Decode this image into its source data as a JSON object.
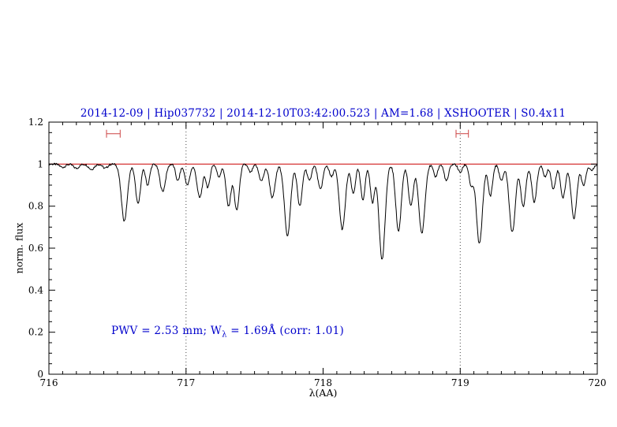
{
  "header": {
    "title": "2014-12-09 | Hip037732 | 2014-12-10T03:42:00.523 | AM=1.68 | XSHOOTER | S0.4x11"
  },
  "annotation": {
    "prefix": "PWV = 2.53 mm; W",
    "sub": "λ",
    "suffix": " = 1.69Å (corr: 1.01)"
  },
  "colors": {
    "title": "#0000cc",
    "annotation": "#0000cc",
    "spectrum": "#000000",
    "continuum": "#cc0000",
    "marker": "#cc4444",
    "dotted": "#444444",
    "axis": "#000000"
  },
  "chart_data": {
    "type": "line",
    "title": "2014-12-09 | Hip037732 | 2014-12-10T03:42:00.523 | AM=1.68 | XSHOOTER | S0.4x11",
    "xlabel": "λ(AA)",
    "ylabel": "norm. flux",
    "xlim": [
      716,
      720
    ],
    "ylim": [
      0,
      1.2
    ],
    "xticks": [
      {
        "v": 716,
        "label": "716"
      },
      {
        "v": 717,
        "label": "717"
      },
      {
        "v": 718,
        "label": "718"
      },
      {
        "v": 719,
        "label": "719"
      },
      {
        "v": 720,
        "label": "720"
      }
    ],
    "yticks": [
      {
        "v": 0,
        "label": "0"
      },
      {
        "v": 0.2,
        "label": "0.2"
      },
      {
        "v": 0.4,
        "label": "0.4"
      },
      {
        "v": 0.6,
        "label": "0.6"
      },
      {
        "v": 0.8,
        "label": "0.8"
      },
      {
        "v": 1,
        "label": "1"
      },
      {
        "v": 1.2,
        "label": "1.2"
      }
    ],
    "x_minor_step": 0.1,
    "y_minor_step": 0.05,
    "grid": false,
    "legend": "none",
    "dotted_vlines": [
      717,
      719
    ],
    "continuum": 1.0,
    "range_markers": [
      {
        "x1": 716.42,
        "x2": 716.52,
        "y": 1.145
      },
      {
        "x1": 718.97,
        "x2": 719.06,
        "y": 1.145
      }
    ],
    "absorption_lines_format": "[center_AA, depth_norm_flux, sigma_AA]",
    "absorption_lines": [
      [
        716.1,
        0.015,
        0.02
      ],
      [
        716.2,
        0.02,
        0.02
      ],
      [
        716.31,
        0.025,
        0.02
      ],
      [
        716.41,
        0.02,
        0.018
      ],
      [
        716.55,
        0.27,
        0.022
      ],
      [
        716.65,
        0.19,
        0.018
      ],
      [
        716.72,
        0.1,
        0.015
      ],
      [
        716.83,
        0.13,
        0.02
      ],
      [
        716.94,
        0.08,
        0.015
      ],
      [
        717.01,
        0.1,
        0.018
      ],
      [
        717.1,
        0.16,
        0.02
      ],
      [
        717.16,
        0.11,
        0.015
      ],
      [
        717.24,
        0.06,
        0.015
      ],
      [
        717.31,
        0.2,
        0.018
      ],
      [
        717.37,
        0.22,
        0.018
      ],
      [
        717.47,
        0.04,
        0.015
      ],
      [
        717.55,
        0.08,
        0.018
      ],
      [
        717.63,
        0.16,
        0.02
      ],
      [
        717.74,
        0.34,
        0.022
      ],
      [
        717.83,
        0.2,
        0.018
      ],
      [
        717.9,
        0.08,
        0.015
      ],
      [
        717.98,
        0.12,
        0.018
      ],
      [
        718.06,
        0.06,
        0.015
      ],
      [
        718.14,
        0.31,
        0.022
      ],
      [
        718.22,
        0.14,
        0.016
      ],
      [
        718.29,
        0.17,
        0.016
      ],
      [
        718.36,
        0.18,
        0.016
      ],
      [
        718.43,
        0.455,
        0.022
      ],
      [
        718.55,
        0.32,
        0.02
      ],
      [
        718.64,
        0.2,
        0.018
      ],
      [
        718.72,
        0.33,
        0.022
      ],
      [
        718.82,
        0.06,
        0.015
      ],
      [
        718.9,
        0.08,
        0.016
      ],
      [
        719.0,
        0.04,
        0.015
      ],
      [
        719.08,
        0.1,
        0.015
      ],
      [
        719.14,
        0.38,
        0.022
      ],
      [
        719.22,
        0.15,
        0.016
      ],
      [
        719.3,
        0.08,
        0.015
      ],
      [
        719.38,
        0.325,
        0.022
      ],
      [
        719.46,
        0.2,
        0.018
      ],
      [
        719.54,
        0.18,
        0.018
      ],
      [
        719.62,
        0.06,
        0.015
      ],
      [
        719.68,
        0.12,
        0.016
      ],
      [
        719.75,
        0.16,
        0.018
      ],
      [
        719.83,
        0.26,
        0.02
      ],
      [
        719.9,
        0.1,
        0.016
      ],
      [
        719.96,
        0.03,
        0.015
      ]
    ],
    "sampling": {
      "points": 900,
      "noise": 0.005
    },
    "annotation_text": "PWV = 2.53 mm; Wλ = 1.69Å (corr: 1.01)"
  }
}
